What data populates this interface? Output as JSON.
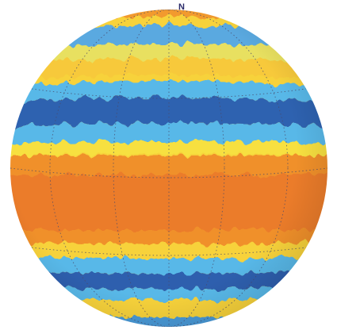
{
  "north_label": "N"
}
